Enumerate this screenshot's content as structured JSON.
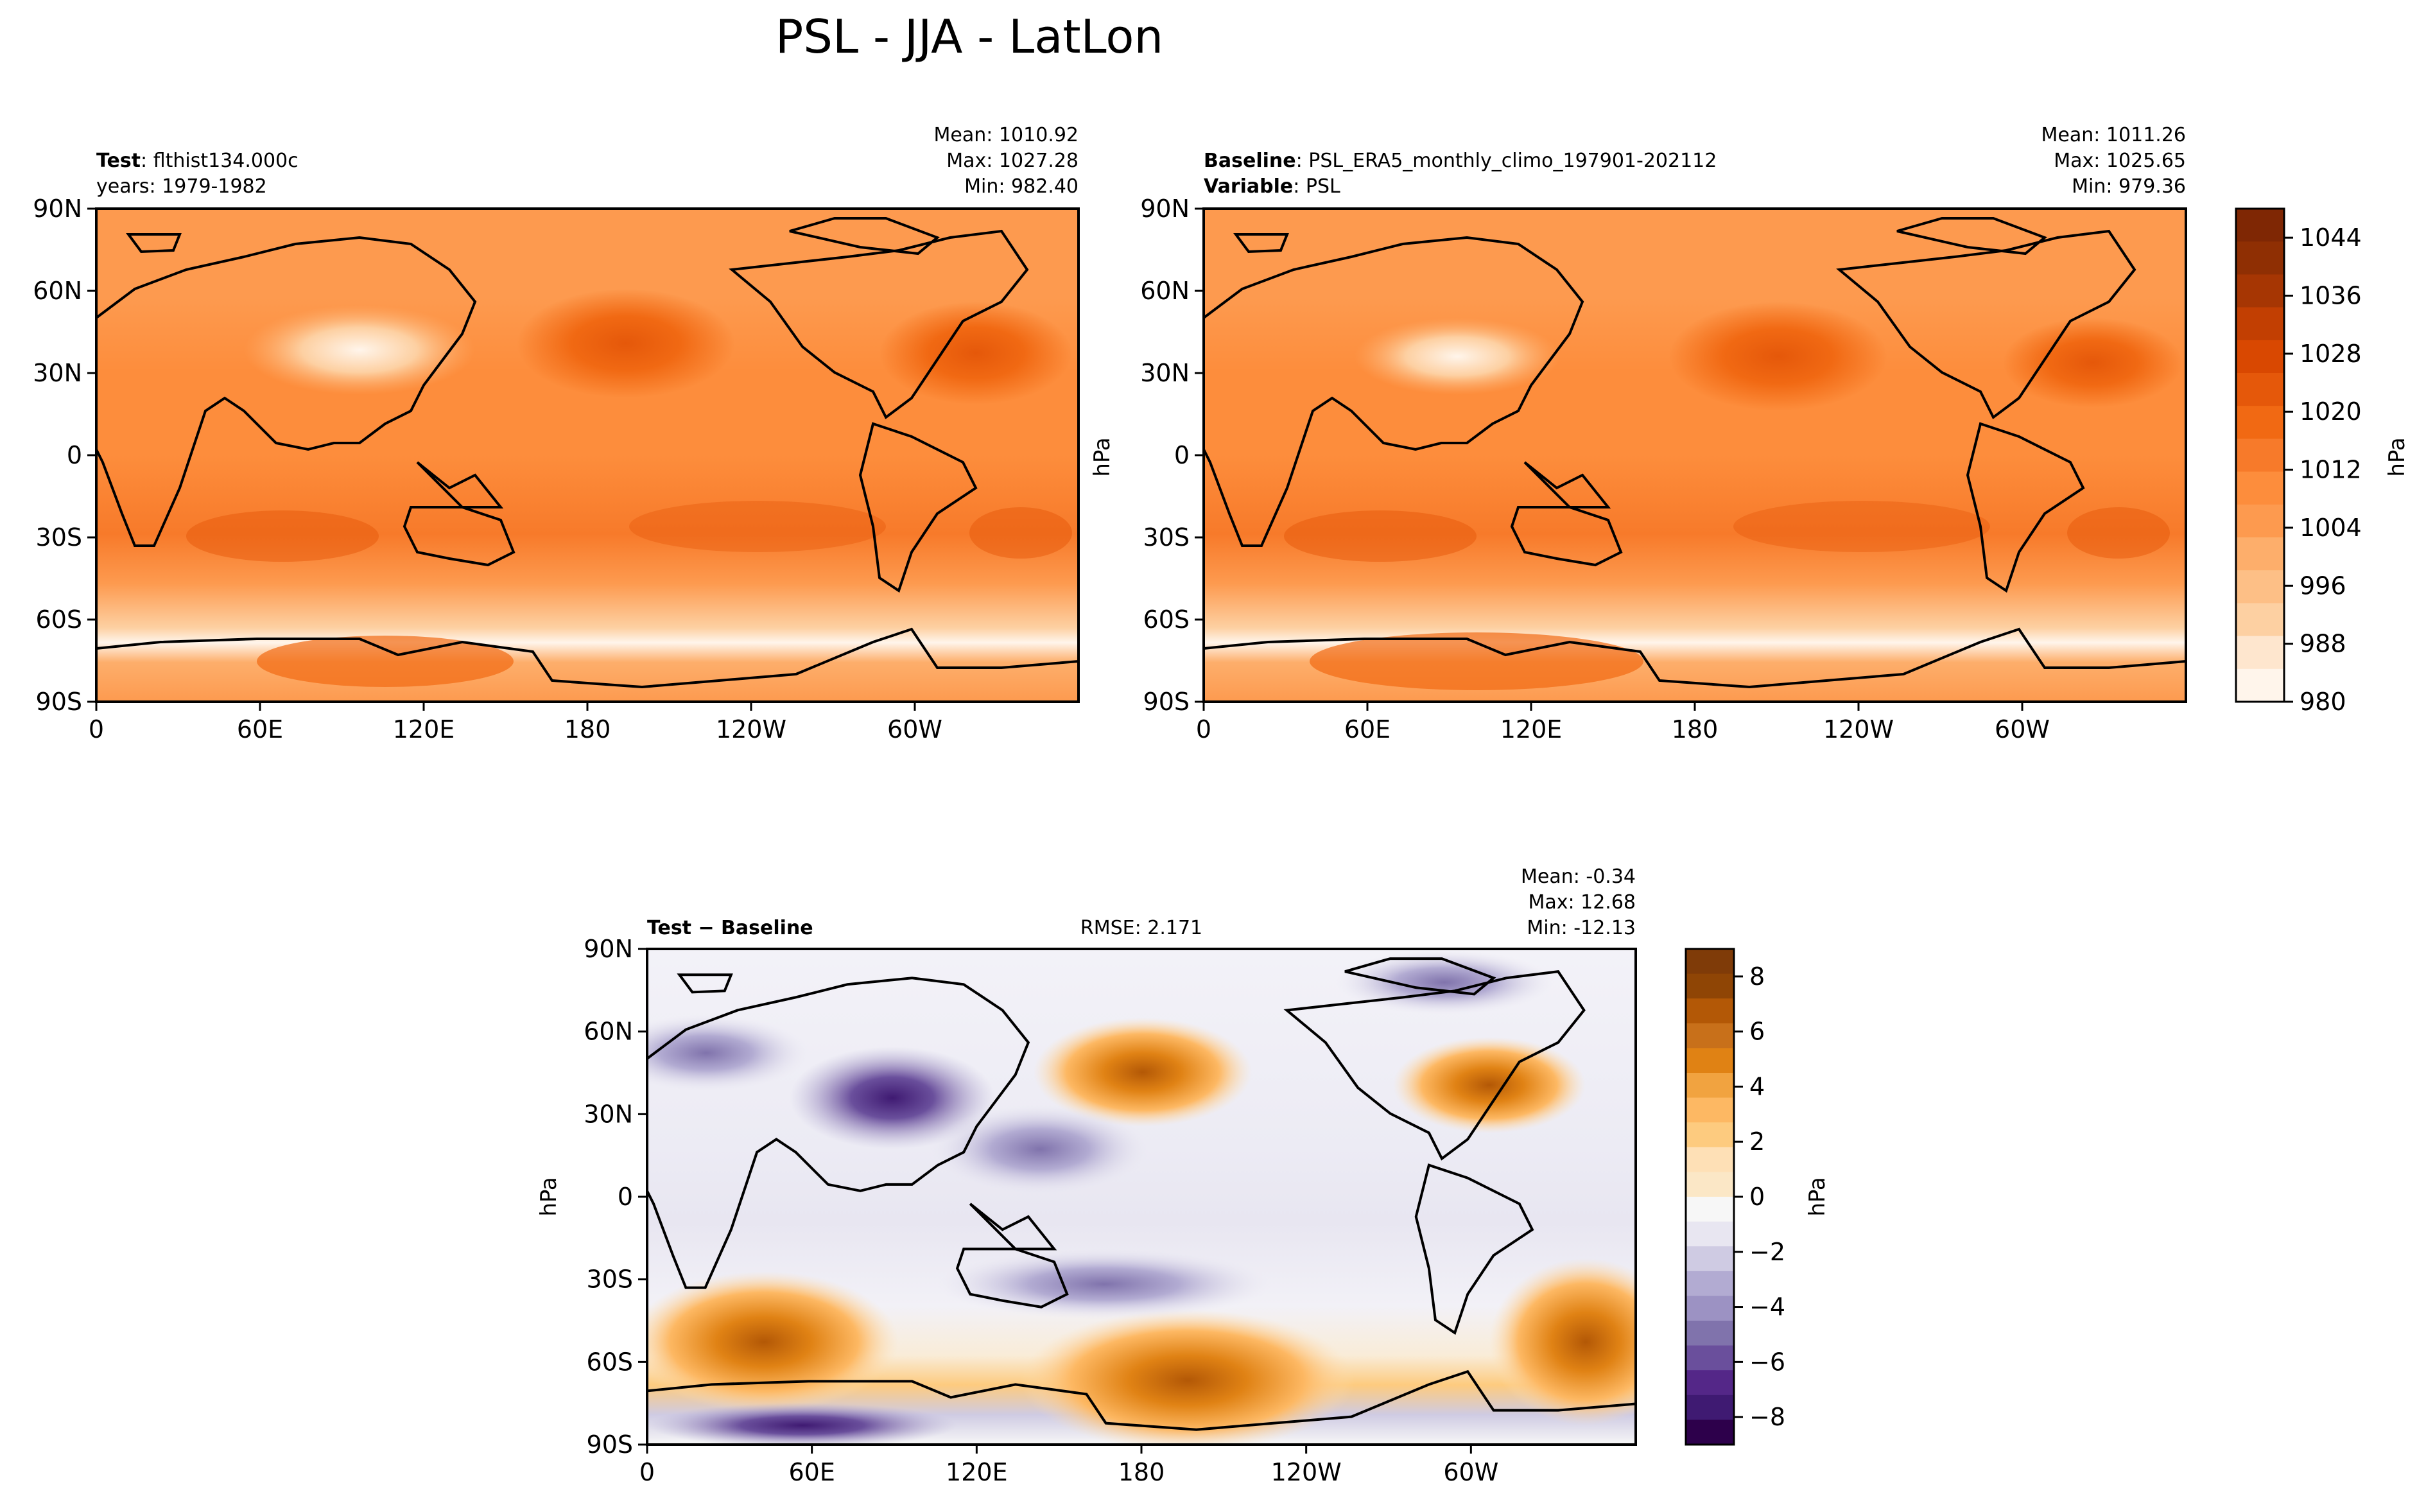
{
  "figure": {
    "title": "PSL - JJA - LatLon"
  },
  "axes": {
    "lon_ticks": [
      "0",
      "60E",
      "120E",
      "180",
      "120W",
      "60W"
    ],
    "lat_ticks": [
      "90N",
      "60N",
      "30N",
      "0",
      "30S",
      "60S",
      "90S"
    ]
  },
  "panels": {
    "test": {
      "label_bold": "Test",
      "label_value": "flthist134.000c",
      "line2": "years: 1979-1982",
      "mean": "Mean: 1010.92",
      "max": "Max: 1027.28",
      "min": "Min: 982.40",
      "ylabel": ""
    },
    "baseline": {
      "label_bold": "Baseline",
      "label_value": "PSL_ERA5_monthly_climo_197901-202112",
      "line2_bold": "Variable",
      "line2_value": "PSL",
      "mean": "Mean: 1011.26",
      "max": "Max: 1025.65",
      "min": "Min: 979.36",
      "ylabel": "hPa"
    },
    "diff": {
      "label": "Test − Baseline",
      "rmse": "RMSE: 2.171",
      "mean": "Mean: -0.34",
      "max": "Max: 12.68",
      "min": "Min: -12.13",
      "ylabel": "hPa"
    }
  },
  "colorbars": {
    "top": {
      "label": "hPa",
      "ticks": [
        "980",
        "988",
        "996",
        "1004",
        "1012",
        "1020",
        "1028",
        "1036",
        "1044"
      ],
      "colors": [
        "#fff5eb",
        "#fee6ce",
        "#fdd0a2",
        "#fdbf86",
        "#fdae6b",
        "#fd9a4f",
        "#fd8d3c",
        "#f77a2a",
        "#f16913",
        "#e5580a",
        "#d94801",
        "#c23f02",
        "#a63603",
        "#8f2f03",
        "#7f2704"
      ]
    },
    "diff": {
      "label": "hPa",
      "ticks": [
        "8",
        "6",
        "4",
        "2",
        "0",
        "−2",
        "−4",
        "−6",
        "−8"
      ],
      "colors": [
        "#2d004b",
        "#3f1a72",
        "#542788",
        "#6a4f9c",
        "#8073ac",
        "#9c92c3",
        "#b2abd2",
        "#cfcbe3",
        "#e8e6f1",
        "#f7f7f7",
        "#fbe7c6",
        "#fee0b6",
        "#fdcb7f",
        "#fdb863",
        "#f1a340",
        "#e08214",
        "#c8701a",
        "#b35806",
        "#8f4505",
        "#7f3b08"
      ]
    }
  },
  "chart_data": [
    {
      "type": "heatmap",
      "title": "",
      "name": "test",
      "variable": "PSL",
      "units": "hPa",
      "xlim": [
        0,
        360
      ],
      "ylim": [
        -90,
        90
      ],
      "xticks": [
        "0",
        "60E",
        "120E",
        "180",
        "120W",
        "60W"
      ],
      "yticks": [
        "90N",
        "60N",
        "30N",
        "0",
        "30S",
        "60S",
        "90S"
      ],
      "clim": [
        980,
        1048
      ],
      "mean": 1010.92,
      "max": 1027.28,
      "min": 982.4
    },
    {
      "type": "heatmap",
      "title": "",
      "name": "baseline",
      "variable": "PSL",
      "units": "hPa",
      "xlim": [
        0,
        360
      ],
      "ylim": [
        -90,
        90
      ],
      "xticks": [
        "0",
        "60E",
        "120E",
        "180",
        "120W",
        "60W"
      ],
      "yticks": [
        "90N",
        "60N",
        "30N",
        "0",
        "30S",
        "60S",
        "90S"
      ],
      "clim": [
        980,
        1048
      ],
      "mean": 1011.26,
      "max": 1025.65,
      "min": 979.36
    },
    {
      "type": "heatmap",
      "title": "",
      "name": "diff",
      "variable": "PSL",
      "units": "hPa",
      "xlim": [
        0,
        360
      ],
      "ylim": [
        -90,
        90
      ],
      "xticks": [
        "0",
        "60E",
        "120E",
        "180",
        "120W",
        "60W"
      ],
      "yticks": [
        "90N",
        "60N",
        "30N",
        "0",
        "30S",
        "60S",
        "90S"
      ],
      "clim": [
        -9,
        9
      ],
      "mean": -0.34,
      "max": 12.68,
      "min": -12.13,
      "rmse": 2.171
    }
  ]
}
